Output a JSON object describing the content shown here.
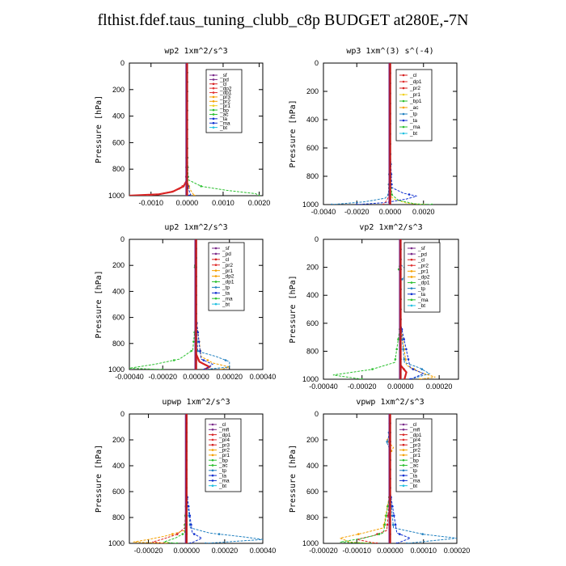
{
  "page": {
    "title": "flthist.fdef.taus_tuning_clubb_c8p  BUDGET at280E,-7N"
  },
  "chart_data": [
    {
      "type": "line",
      "title": "wp2  1xm^2/s^3",
      "ylabel": "Pressure [hPa]",
      "xlim": [
        -0.0016,
        0.0021
      ],
      "ylim": [
        1000,
        0
      ],
      "x_ticks": [
        "-0.0010",
        "0.0000",
        "0.0010",
        "0.0020"
      ],
      "x_tick_values": [
        -0.001,
        0.0,
        0.001,
        0.002
      ],
      "y_ticks": [
        "0",
        "200",
        "400",
        "600",
        "800",
        "1000"
      ],
      "y_tick_values": [
        0,
        200,
        400,
        600,
        800,
        1000
      ],
      "legend": [
        "_sf",
        "_pd",
        "_cl",
        "_dp2",
        "_dp1",
        "_pr3",
        "_pr2",
        "_pr1",
        "_bp",
        "_ac",
        "_ta",
        "_ma",
        "_bt"
      ],
      "series": [
        {
          "name": "_sf",
          "color": "#7a2a8a",
          "p": [
            0,
            500,
            900,
            960,
            985,
            1000
          ],
          "v": [
            0,
            0,
            0,
            0,
            0,
            0
          ]
        },
        {
          "name": "_cl",
          "color": "#d62020",
          "p": [
            0,
            500,
            880,
            930,
            970,
            990,
            1000
          ],
          "v": [
            0,
            0,
            0,
            -0.0001,
            -0.0004,
            -0.0008,
            -0.0016
          ]
        },
        {
          "name": "_dp1",
          "color": "#e03030",
          "p": [
            0,
            500,
            900,
            950,
            980,
            1000
          ],
          "v": [
            0,
            0,
            -3e-05,
            -0.0002,
            -0.0006,
            -0.0011
          ]
        },
        {
          "name": "_pr2",
          "color": "#f5a000",
          "p": [
            0,
            600,
            900,
            950,
            980,
            1000
          ],
          "v": [
            0,
            0,
            2e-05,
            8e-05,
            0.00015,
            0.0002
          ]
        },
        {
          "name": "_bp",
          "color": "#2cc030",
          "p": [
            0,
            600,
            880,
            930,
            960,
            985,
            1000
          ],
          "v": [
            0,
            0,
            3e-05,
            0.0004,
            0.0011,
            0.0019,
            0.002
          ]
        },
        {
          "name": "_ta",
          "color": "#1030d0",
          "p": [
            0,
            600,
            900,
            950,
            990,
            1000
          ],
          "v": [
            0,
            0,
            1e-05,
            4e-05,
            0.0001,
            5e-05
          ]
        },
        {
          "name": "_bt",
          "color": "#20c0e0",
          "p": [
            0,
            1000
          ],
          "v": [
            0,
            0
          ]
        }
      ]
    },
    {
      "type": "line",
      "title": "wp3  1xm^(3) s^(-4)",
      "ylabel": "Pressure [hPa]",
      "xlim": [
        -0.004,
        0.004
      ],
      "ylim": [
        1000,
        0
      ],
      "x_ticks": [
        "-0.0040",
        "-0.0020",
        "0.0000",
        "0.0020"
      ],
      "x_tick_values": [
        -0.004,
        -0.002,
        0.0,
        0.002
      ],
      "y_ticks": [
        "0",
        "200",
        "400",
        "600",
        "800",
        "1000"
      ],
      "y_tick_values": [
        0,
        200,
        400,
        600,
        800,
        1000
      ],
      "legend": [
        "_cl",
        "_dp1",
        "_pr2",
        "_pr1",
        "_bp1",
        "_ac",
        "_tp",
        "_ta",
        "_ma",
        "_bt"
      ],
      "series": [
        {
          "name": "_cl",
          "color": "#d62020",
          "p": [
            0,
            600,
            900,
            960,
            1000
          ],
          "v": [
            0,
            0,
            0,
            0,
            0
          ]
        },
        {
          "name": "_pr1",
          "color": "#f0d020",
          "p": [
            0,
            600,
            920,
            960,
            990,
            1000
          ],
          "v": [
            0,
            0,
            -0.0001,
            0.0002,
            0.001,
            0.002
          ]
        },
        {
          "name": "_bp1",
          "color": "#2cc030",
          "p": [
            0,
            600,
            930,
            970,
            995,
            1000
          ],
          "v": [
            0,
            0,
            0.0001,
            0.0005,
            0.0015,
            0.0025
          ]
        },
        {
          "name": "_tp",
          "color": "#2080c0",
          "p": [
            0,
            600,
            930,
            955,
            980,
            1000
          ],
          "v": [
            0,
            0,
            -0.0001,
            -0.0003,
            -0.0015,
            -0.0035
          ]
        },
        {
          "name": "_ta",
          "color": "#1030d0",
          "p": [
            0,
            600,
            880,
            920,
            940,
            960,
            985,
            1000
          ],
          "v": [
            0,
            0,
            0.0001,
            0.0008,
            0.0016,
            0.001,
            -0.0002,
            -0.002
          ]
        },
        {
          "name": "_dp1",
          "color": "#e03030",
          "p": [
            0,
            600,
            930,
            970,
            1000
          ],
          "v": [
            0,
            0,
            -5e-05,
            -0.0002,
            -0.0004
          ]
        },
        {
          "name": "_bt",
          "color": "#20c0e0",
          "p": [
            0,
            1000
          ],
          "v": [
            0,
            0
          ]
        }
      ]
    },
    {
      "type": "line",
      "title": "up2  1xm^2/s^3",
      "ylabel": "Pressure [hPa]",
      "xlim": [
        -0.0004,
        0.0004
      ],
      "ylim": [
        1000,
        0
      ],
      "x_ticks": [
        "-0.00040",
        "-0.00020",
        "0.00000",
        "0.00020",
        "0.00040"
      ],
      "x_tick_values": [
        -0.0004,
        -0.0002,
        0.0,
        0.0002,
        0.0004
      ],
      "y_ticks": [
        "0",
        "200",
        "400",
        "600",
        "800",
        "1000"
      ],
      "y_tick_values": [
        0,
        200,
        400,
        600,
        800,
        1000
      ],
      "legend": [
        "_sf",
        "_pd",
        "_cl",
        "_pr2",
        "_pr1",
        "_dp2",
        "_dp1",
        "_tp",
        "_ta",
        "_ma",
        "_bt"
      ],
      "series": [
        {
          "name": "_sf",
          "color": "#7a2a8a",
          "p": [
            0,
            1000
          ],
          "v": [
            0,
            0
          ]
        },
        {
          "name": "_cl",
          "color": "#d62020",
          "p": [
            0,
            600,
            880,
            940,
            980,
            1000
          ],
          "v": [
            0,
            0,
            0,
            2e-05,
            8e-05,
            5e-05
          ]
        },
        {
          "name": "_pr1",
          "color": "#f5a000",
          "p": [
            0,
            600,
            900,
            950,
            980,
            1000
          ],
          "v": [
            0,
            0,
            3e-05,
            0.0001,
            0.0002,
            0.00015
          ]
        },
        {
          "name": "_dp1",
          "color": "#2cc030",
          "p": [
            0,
            150,
            200,
            250,
            600,
            850,
            920,
            960,
            990,
            1000
          ],
          "v": [
            0,
            0,
            -1e-05,
            0,
            0,
            -2e-05,
            -0.0001,
            -0.00025,
            -0.0004,
            -0.0002
          ]
        },
        {
          "name": "_tp",
          "color": "#2080c0",
          "p": [
            0,
            600,
            860,
            900,
            940,
            980,
            1000
          ],
          "v": [
            0,
            0,
            1e-05,
            0.00012,
            0.0002,
            0.0002,
            5e-05
          ]
        },
        {
          "name": "_ta",
          "color": "#1030d0",
          "p": [
            0,
            600,
            920,
            960,
            1000
          ],
          "v": [
            0,
            0,
            3e-05,
            0.0001,
            5e-05
          ]
        },
        {
          "name": "_bt",
          "color": "#20c0e0",
          "p": [
            0,
            1000
          ],
          "v": [
            0,
            0
          ]
        }
      ]
    },
    {
      "type": "line",
      "title": "vp2  1xm^2/s^3",
      "ylabel": "Pressure [hPa]",
      "xlim": [
        -0.0004,
        0.0003
      ],
      "ylim": [
        1000,
        0
      ],
      "x_ticks": [
        "-0.00040",
        "-0.00020",
        "0.00000",
        "0.00020"
      ],
      "x_tick_values": [
        -0.0004,
        -0.0002,
        0.0,
        0.0002
      ],
      "y_ticks": [
        "0",
        "200",
        "400",
        "600",
        "800",
        "1000"
      ],
      "y_tick_values": [
        0,
        200,
        400,
        600,
        800,
        1000
      ],
      "legend": [
        "_sf",
        "_pd",
        "_cl",
        "_pr2",
        "_pr1",
        "_dp2",
        "_dp1",
        "_tp",
        "_ta",
        "_ma",
        "_bt"
      ],
      "series": [
        {
          "name": "_sf",
          "color": "#7a2a8a",
          "p": [
            0,
            1000
          ],
          "v": [
            0,
            0
          ]
        },
        {
          "name": "_cl",
          "color": "#d62020",
          "p": [
            0,
            600,
            900,
            950,
            1000
          ],
          "v": [
            0,
            0,
            0,
            3e-05,
            2e-05
          ]
        },
        {
          "name": "_pr1",
          "color": "#f5a000",
          "p": [
            0,
            600,
            900,
            950,
            985,
            1000
          ],
          "v": [
            0,
            0,
            3e-05,
            0.0001,
            0.00018,
            0.0001
          ]
        },
        {
          "name": "_dp1",
          "color": "#2cc030",
          "p": [
            0,
            150,
            210,
            270,
            600,
            880,
            930,
            970,
            1000
          ],
          "v": [
            0,
            0,
            -1e-05,
            0,
            0,
            -3e-05,
            -0.00015,
            -0.00035,
            -0.0002
          ]
        },
        {
          "name": "_tp",
          "color": "#2080c0",
          "p": [
            0,
            180,
            230,
            300,
            600,
            880,
            920,
            960,
            1000
          ],
          "v": [
            0,
            0,
            4e-05,
            0,
            0,
            2e-05,
            0.0001,
            0.00015,
            5e-05
          ]
        },
        {
          "name": "_ta",
          "color": "#1030d0",
          "p": [
            0,
            600,
            920,
            960,
            1000
          ],
          "v": [
            0,
            0,
            5e-05,
            0.00012,
            5e-05
          ]
        },
        {
          "name": "_bt",
          "color": "#20c0e0",
          "p": [
            0,
            1000
          ],
          "v": [
            0,
            0
          ]
        }
      ]
    },
    {
      "type": "line",
      "title": "upwp  1xm^2/s^3",
      "ylabel": "Pressure [hPa]",
      "xlim": [
        -0.0003,
        0.0004
      ],
      "ylim": [
        1000,
        0
      ],
      "x_ticks": [
        "-0.00020",
        "0.00000",
        "0.00020",
        "0.00040"
      ],
      "x_tick_values": [
        -0.0002,
        0.0,
        0.0002,
        0.0004
      ],
      "y_ticks": [
        "0",
        "200",
        "400",
        "600",
        "800",
        "1000"
      ],
      "y_tick_values": [
        0,
        200,
        400,
        600,
        800,
        1000
      ],
      "legend": [
        "_cl",
        "_mfl",
        "_dp1",
        "_pr4",
        "_pr3",
        "_pr2",
        "_pr1",
        "_bp",
        "_ac",
        "_tp",
        "_ta",
        "_ma",
        "_bt"
      ],
      "series": [
        {
          "name": "_cl",
          "color": "#7a2a8a",
          "p": [
            0,
            1000
          ],
          "v": [
            0,
            0
          ]
        },
        {
          "name": "_dp1",
          "color": "#d62020",
          "p": [
            0,
            600,
            880,
            930,
            965,
            990,
            1000
          ],
          "v": [
            0,
            0,
            -1e-05,
            -5e-05,
            -0.00012,
            -0.00018,
            -0.0001
          ]
        },
        {
          "name": "_pr1",
          "color": "#f5a000",
          "p": [
            0,
            600,
            900,
            940,
            970,
            990,
            1000
          ],
          "v": [
            0,
            0,
            -1e-05,
            -0.0001,
            -0.0002,
            -0.00028,
            -0.0001
          ]
        },
        {
          "name": "_bp",
          "color": "#2cc030",
          "p": [
            0,
            600,
            920,
            960,
            990,
            1000
          ],
          "v": [
            0,
            0,
            -1e-05,
            -6e-05,
            -0.00012,
            -5e-05
          ]
        },
        {
          "name": "_tp",
          "color": "#2080c0",
          "p": [
            0,
            600,
            880,
            920,
            950,
            970,
            1000
          ],
          "v": [
            0,
            0,
            2e-05,
            0.00012,
            0.0003,
            0.0004,
            0.0001
          ]
        },
        {
          "name": "_ta",
          "color": "#1030d0",
          "p": [
            0,
            600,
            920,
            960,
            1000
          ],
          "v": [
            0,
            0,
            3e-05,
            8e-05,
            2e-05
          ]
        },
        {
          "name": "_bt",
          "color": "#20c0e0",
          "p": [
            0,
            1000
          ],
          "v": [
            0,
            0
          ]
        }
      ]
    },
    {
      "type": "line",
      "title": "vpwp  1xm^2/s^3",
      "ylabel": "Pressure [hPa]",
      "xlim": [
        -0.0002,
        0.0002
      ],
      "ylim": [
        1000,
        0
      ],
      "x_ticks": [
        "-0.00020",
        "-0.00010",
        "0.00000",
        "0.00010",
        "0.00020"
      ],
      "x_tick_values": [
        -0.0002,
        -0.0001,
        0.0,
        0.0001,
        0.0002
      ],
      "y_ticks": [
        "0",
        "200",
        "400",
        "600",
        "800",
        "1000"
      ],
      "y_tick_values": [
        0,
        200,
        400,
        600,
        800,
        1000
      ],
      "legend": [
        "_cl",
        "_mfl",
        "_dp1",
        "_pr4",
        "_pr3",
        "_pr2",
        "_pr1",
        "_bp",
        "_ac",
        "_tp",
        "_ta",
        "_ma",
        "_bt"
      ],
      "series": [
        {
          "name": "_cl",
          "color": "#7a2a8a",
          "p": [
            0,
            1000
          ],
          "v": [
            0,
            0
          ]
        },
        {
          "name": "_pr1",
          "color": "#f5a000",
          "p": [
            0,
            170,
            200,
            260,
            300,
            600,
            880,
            920,
            960,
            990,
            1000
          ],
          "v": [
            0,
            0,
            -1e-05,
            1e-05,
            0,
            0,
            -2e-05,
            -8e-05,
            -0.00015,
            -0.00012,
            -5e-05
          ]
        },
        {
          "name": "_tp",
          "color": "#2080c0",
          "p": [
            0,
            180,
            220,
            280,
            600,
            880,
            930,
            960,
            1000
          ],
          "v": [
            0,
            -5e-06,
            -1e-05,
            0,
            0,
            1e-05,
            0.0001,
            0.0002,
            5e-05
          ]
        },
        {
          "name": "_dp1",
          "color": "#d62020",
          "p": [
            0,
            600,
            900,
            940,
            970,
            1000
          ],
          "v": [
            0,
            0,
            -1e-05,
            -5e-05,
            -0.0001,
            -4e-05
          ]
        },
        {
          "name": "_bp",
          "color": "#2cc030",
          "p": [
            0,
            600,
            920,
            960,
            990,
            1000
          ],
          "v": [
            0,
            0,
            -2e-05,
            -8e-05,
            -0.00015,
            -6e-05
          ]
        },
        {
          "name": "_ta",
          "color": "#1030d0",
          "p": [
            0,
            600,
            920,
            960,
            1000
          ],
          "v": [
            0,
            0,
            2e-05,
            6e-05,
            2e-05
          ]
        },
        {
          "name": "_bt",
          "color": "#20c0e0",
          "p": [
            0,
            1000
          ],
          "v": [
            0,
            0
          ]
        }
      ]
    }
  ]
}
